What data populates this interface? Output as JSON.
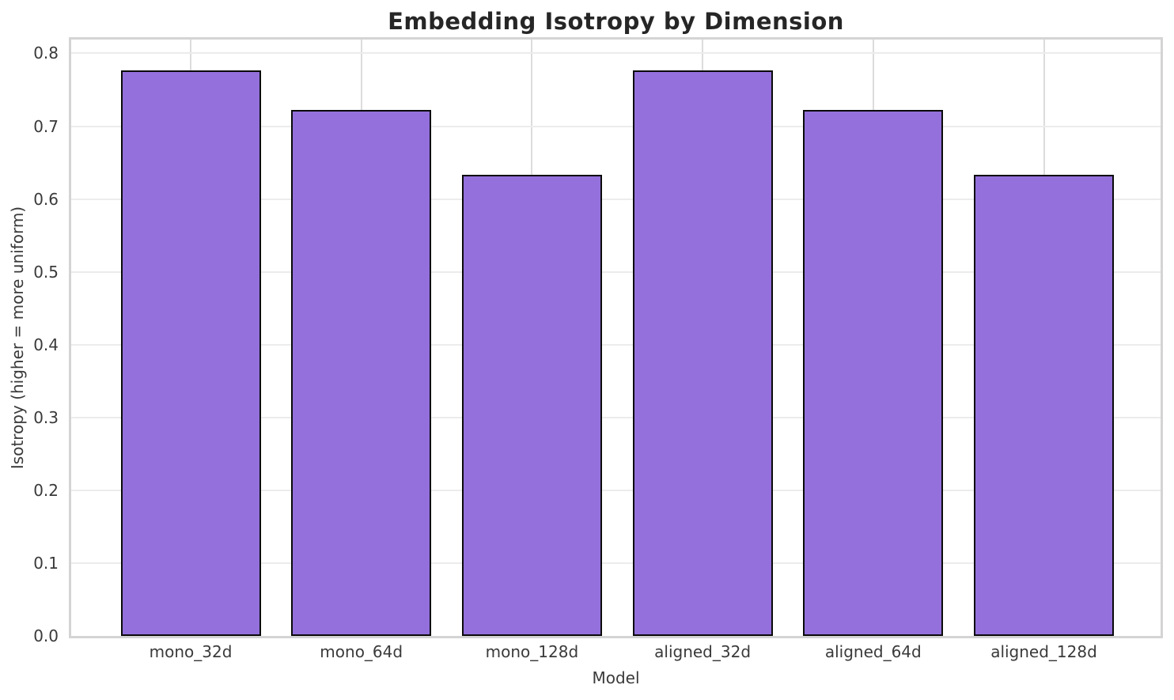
{
  "chart_data": {
    "type": "bar",
    "title": "Embedding Isotropy by Dimension",
    "xlabel": "Model",
    "ylabel": "Isotropy (higher = more uniform)",
    "categories": [
      "mono_32d",
      "mono_64d",
      "mono_128d",
      "aligned_32d",
      "aligned_64d",
      "aligned_128d"
    ],
    "values": [
      0.777,
      0.722,
      0.633,
      0.777,
      0.722,
      0.633
    ],
    "yticks": [
      0.0,
      0.1,
      0.2,
      0.3,
      0.4,
      0.5,
      0.6,
      0.7,
      0.8
    ],
    "ytick_labels": [
      "0.0",
      "0.1",
      "0.2",
      "0.3",
      "0.4",
      "0.5",
      "0.6",
      "0.7",
      "0.8"
    ],
    "ylim": [
      0,
      0.819
    ],
    "grid": true,
    "legend_position": "none",
    "bar_color": "#9370DB",
    "bar_edge_color": "#0a0a0a",
    "title_color": "#262626",
    "tick_label_color": "#3a3a3a",
    "gridline_color": "#ececec",
    "spine_color": "#d4d4d4",
    "background_color": "#ffffff"
  }
}
